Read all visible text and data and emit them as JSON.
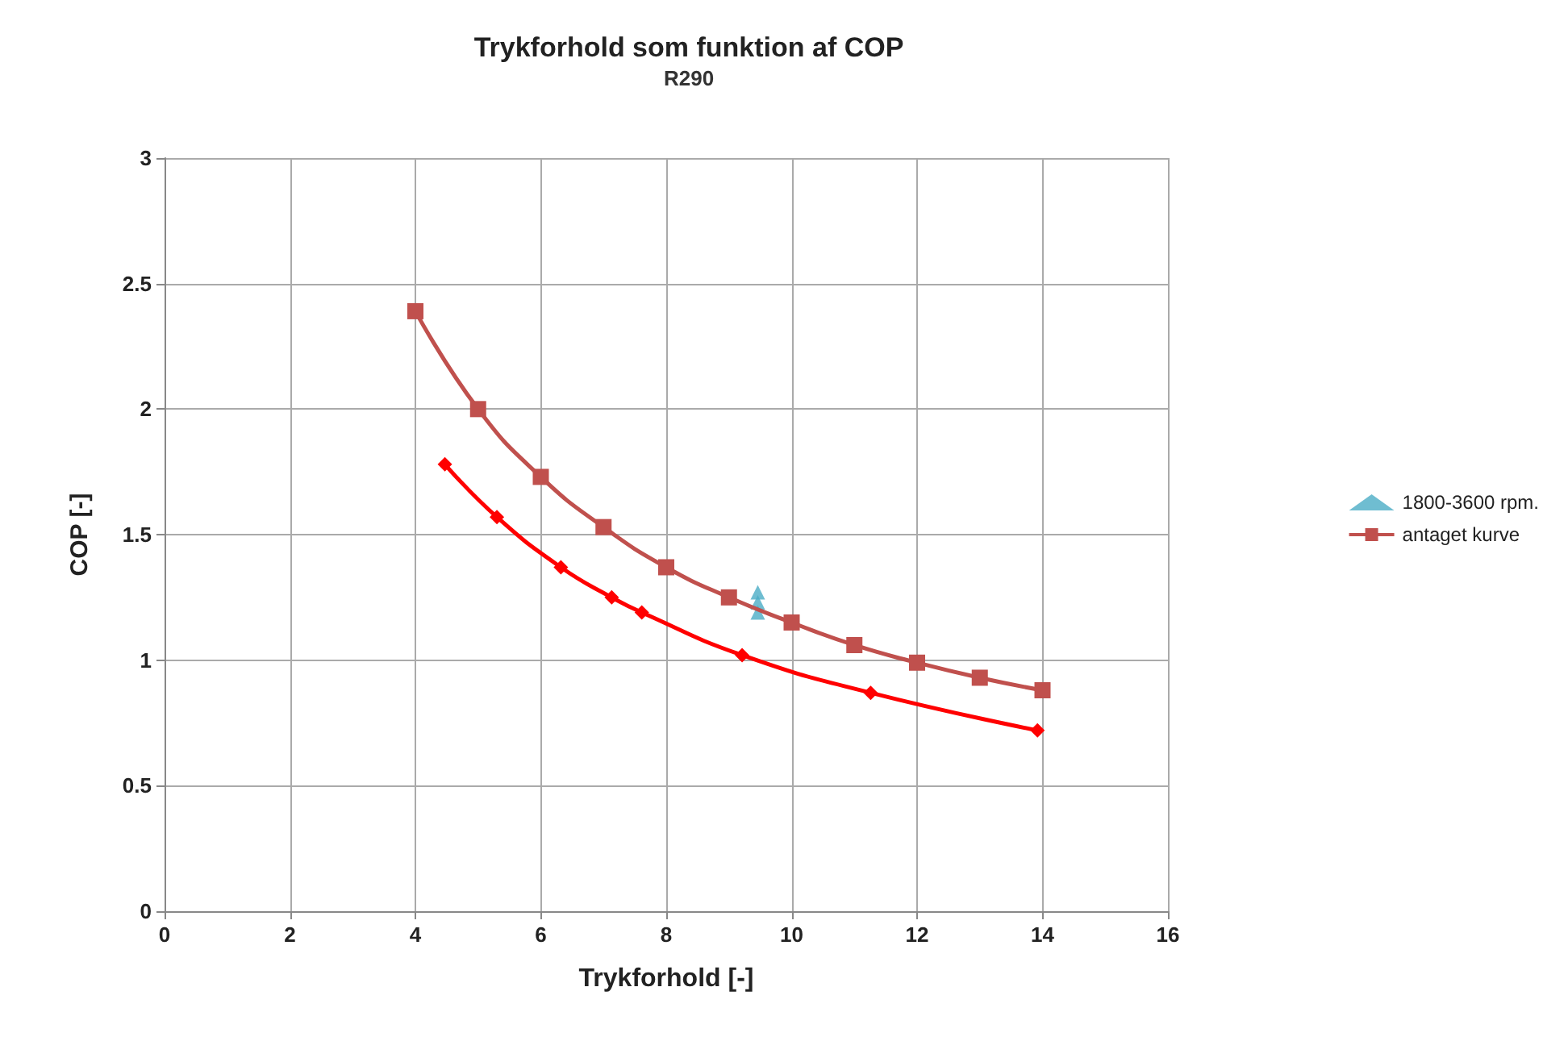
{
  "chart_data": {
    "type": "line",
    "title": "Trykforhold som funktion af COP",
    "subtitle": "R290",
    "xlabel": "Trykforhold [-]",
    "ylabel": "COP [-]",
    "xlim": [
      0,
      16
    ],
    "xticks": [
      0,
      2,
      4,
      6,
      8,
      10,
      12,
      14,
      16
    ],
    "ylim": [
      0,
      3
    ],
    "yticks": [
      0,
      0.5,
      1,
      1.5,
      2,
      2.5,
      3
    ],
    "grid": true,
    "legend": "right",
    "line_style": "solid",
    "series": [
      {
        "color": "#ff0000",
        "marker": "diamond",
        "x": [
          4.47,
          5.3,
          6.32,
          7.13,
          7.61,
          9.21,
          11.26,
          13.92
        ],
        "values": [
          1.78,
          1.57,
          1.37,
          1.25,
          1.19,
          1.02,
          0.87,
          0.72
        ]
      },
      {
        "name": "1800-3600 rpm.",
        "type": "scatter",
        "color": "#4bacc6",
        "marker": "triangle",
        "x": [
          9.46,
          9.46,
          9.46
        ],
        "values": [
          1.27,
          1.23,
          1.19
        ]
      },
      {
        "name": "antaget kurve",
        "color": "#c0504d",
        "marker": "square",
        "x": [
          4,
          5,
          6,
          7,
          8,
          9,
          10,
          11,
          12,
          13,
          14
        ],
        "values": [
          2.39,
          2.0,
          1.73,
          1.53,
          1.37,
          1.25,
          1.15,
          1.06,
          0.99,
          0.93,
          0.88
        ]
      }
    ]
  }
}
